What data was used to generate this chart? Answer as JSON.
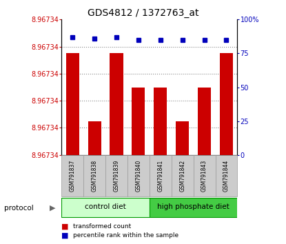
{
  "title": "GDS4812 / 1372763_at",
  "samples": [
    "GSM791837",
    "GSM791838",
    "GSM791839",
    "GSM791840",
    "GSM791841",
    "GSM791842",
    "GSM791843",
    "GSM791844"
  ],
  "red_values": [
    8.96735,
    8.96733,
    8.96735,
    8.96734,
    8.96734,
    8.96733,
    8.96734,
    8.96735
  ],
  "blue_values": [
    87,
    86,
    87,
    85,
    85,
    85,
    85,
    85
  ],
  "ymin": 8.96732,
  "ymax": 8.96736,
  "ytick_labels": [
    "8.96734",
    "8.96734",
    "8.96734",
    "8.96734",
    "8.96734",
    "8.96734"
  ],
  "right_yticks": [
    0,
    25,
    50,
    75,
    100
  ],
  "bar_color": "#cc0000",
  "blue_color": "#0000bb",
  "group1_label": "control diet",
  "group1_color": "#ccffcc",
  "group2_label": "high phosphate diet",
  "group2_color": "#44cc44",
  "group_border_color": "#009900",
  "sample_bg_color": "#cccccc",
  "protocol_label": "protocol"
}
